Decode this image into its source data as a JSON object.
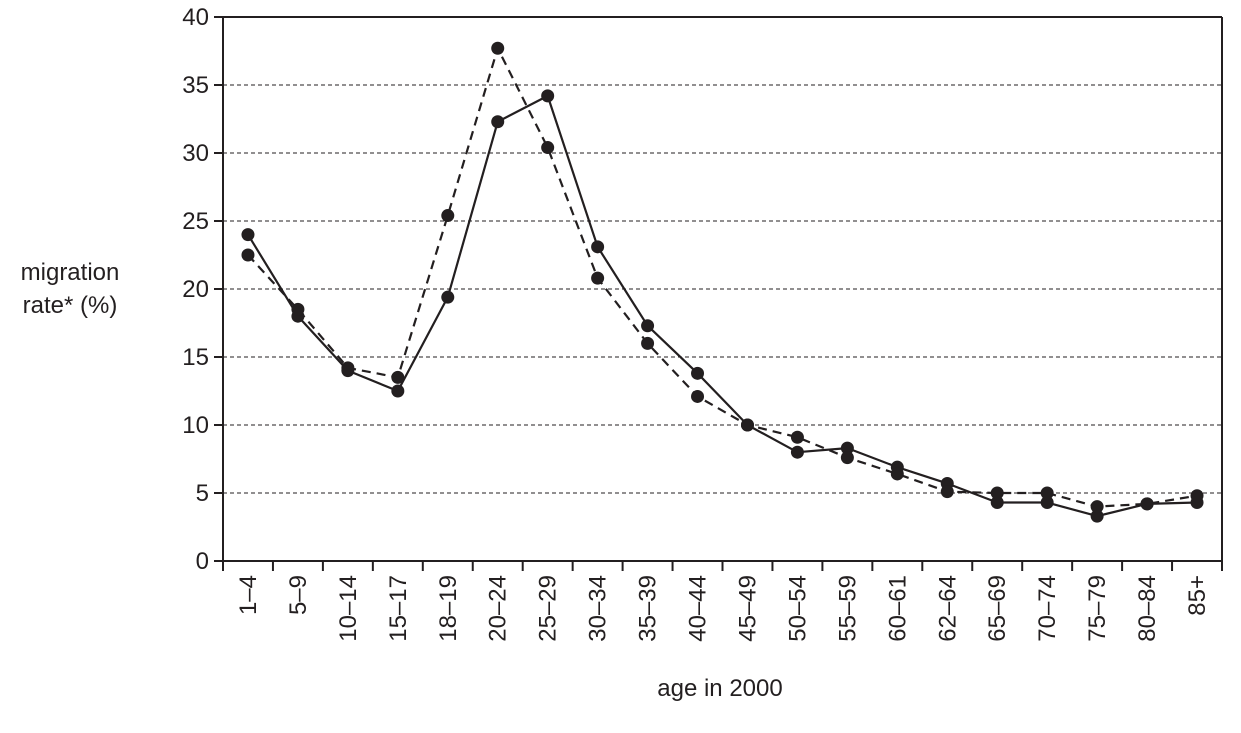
{
  "chart_data": {
    "type": "line",
    "title": "",
    "xlabel": "age in 2000",
    "ylabel_lines": [
      "migration",
      "rate* (%)"
    ],
    "categories": [
      "1–4",
      "5–9",
      "10–14",
      "15–17",
      "18–19",
      "20–24",
      "25–29",
      "30–34",
      "35–39",
      "40–44",
      "45–49",
      "50–54",
      "55–59",
      "60–61",
      "62–64",
      "65–69",
      "70–74",
      "75–79",
      "80–84",
      "85+"
    ],
    "ylim": [
      0,
      40
    ],
    "yticks": [
      0,
      5,
      10,
      15,
      20,
      25,
      30,
      35,
      40
    ],
    "grid": "horizontal dashed",
    "legend": "none",
    "series": [
      {
        "style": "solid",
        "color": "#231f20",
        "values": [
          24.0,
          18.0,
          14.0,
          12.5,
          19.4,
          32.3,
          34.2,
          23.1,
          17.3,
          13.8,
          10.0,
          8.0,
          8.3,
          6.9,
          5.7,
          4.3,
          4.3,
          3.3,
          4.2,
          4.3
        ]
      },
      {
        "style": "dashed",
        "color": "#231f20",
        "values": [
          22.5,
          18.5,
          14.2,
          13.5,
          25.4,
          37.7,
          30.4,
          20.8,
          16.0,
          12.1,
          10.0,
          9.1,
          7.6,
          6.4,
          5.1,
          5.0,
          5.0,
          4.0,
          4.2,
          4.8
        ]
      }
    ]
  }
}
